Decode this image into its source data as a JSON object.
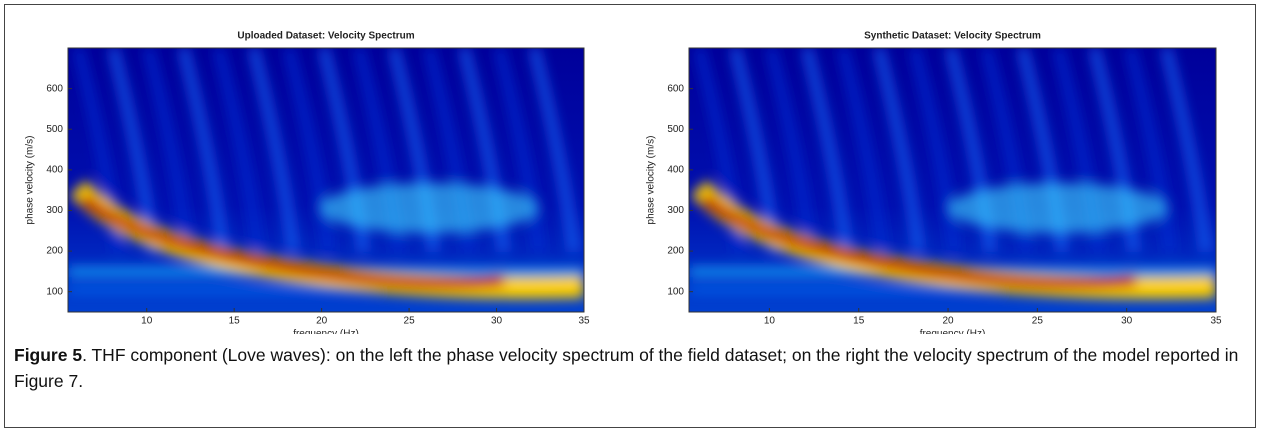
{
  "chart_data": [
    {
      "type": "heatmap",
      "title": "Uploaded Dataset: Velocity Spectrum",
      "xlabel": "frequency (Hz)",
      "ylabel": "phase velocity (m/s)",
      "xlim": [
        5.5,
        35
      ],
      "ylim": [
        50,
        700
      ],
      "xticks": [
        10,
        15,
        20,
        25,
        30,
        35
      ],
      "yticks": [
        100,
        200,
        300,
        400,
        500,
        600
      ]
    },
    {
      "type": "heatmap",
      "title": "Synthetic Dataset: Velocity Spectrum",
      "xlabel": "frequency (Hz)",
      "ylabel": "phase velocity (m/s)",
      "xlim": [
        5.5,
        35
      ],
      "ylim": [
        50,
        700
      ],
      "xticks": [
        10,
        15,
        20,
        25,
        30,
        35
      ],
      "yticks": [
        100,
        200,
        300,
        400,
        500,
        600
      ]
    }
  ],
  "caption": {
    "label": "Figure 5",
    "text": ". THF component (Love waves): on the left the phase velocity spectrum of the field dataset; on the right the velocity spectrum of the model reported in Figure 7."
  }
}
